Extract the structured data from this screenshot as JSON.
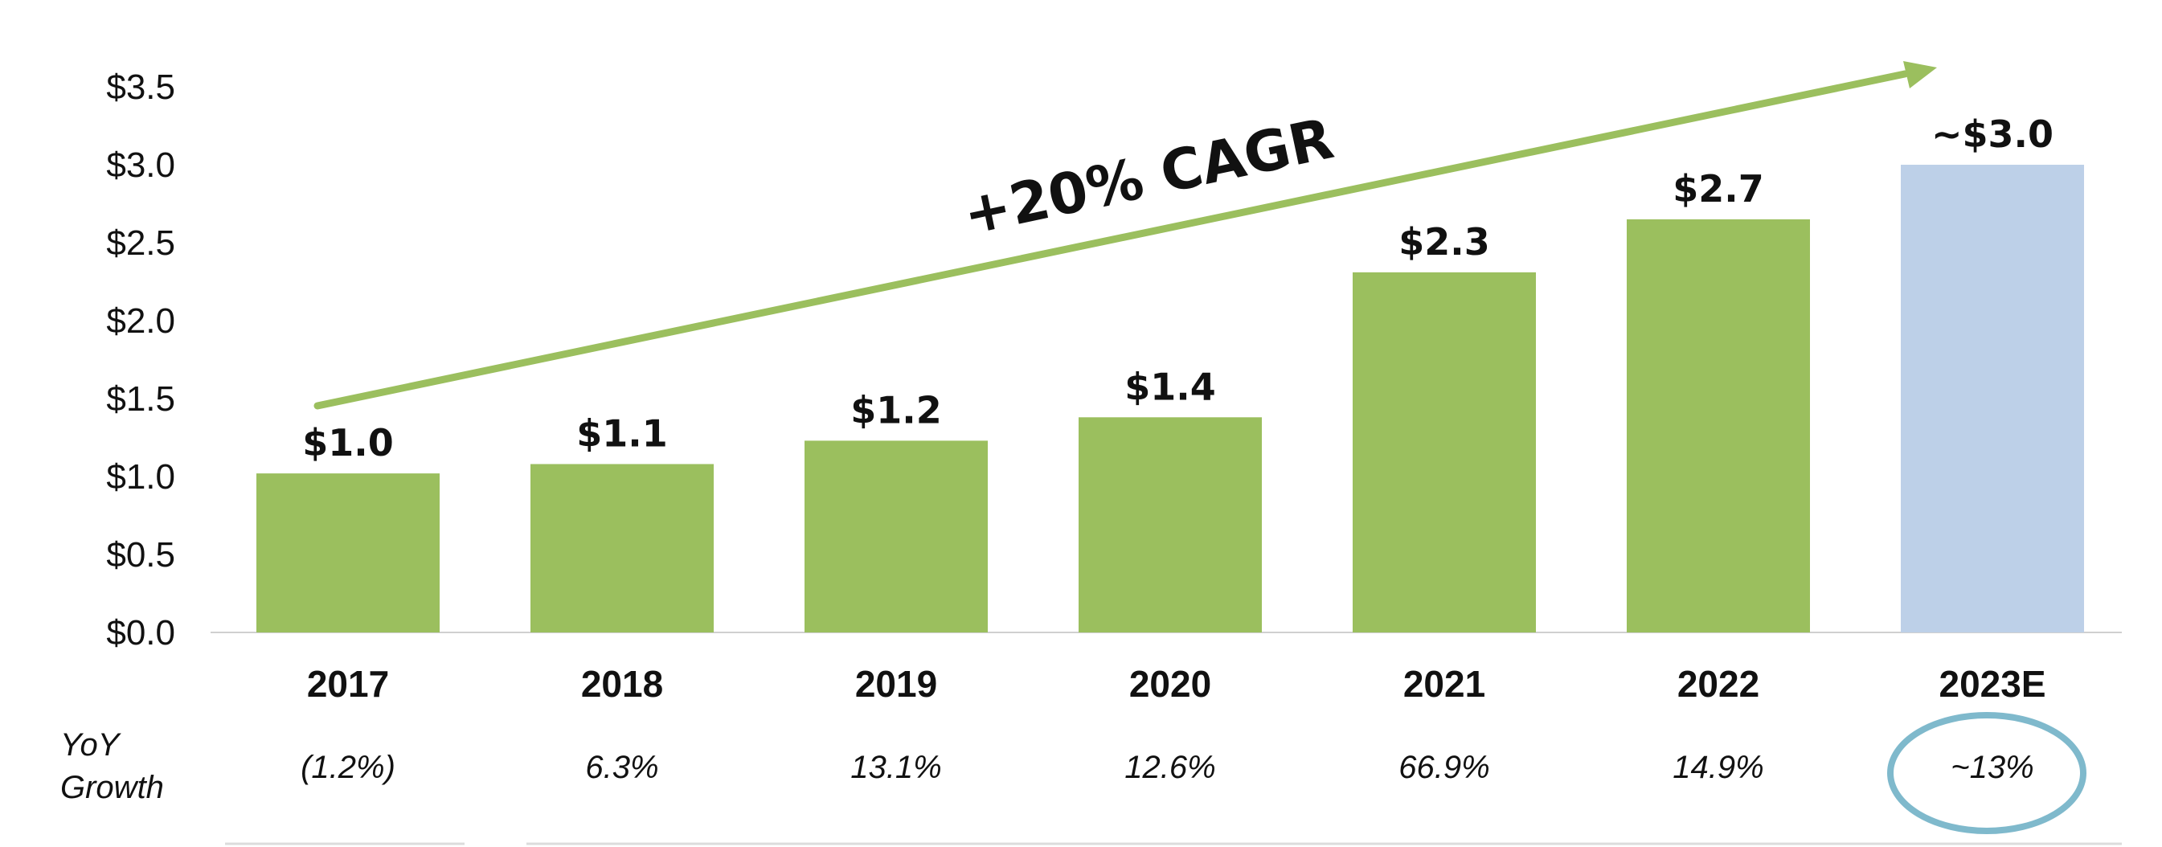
{
  "chart_data": {
    "type": "bar",
    "categories": [
      "2017",
      "2018",
      "2019",
      "2020",
      "2021",
      "2022",
      "2023E"
    ],
    "values": [
      1.02,
      1.08,
      1.23,
      1.38,
      2.31,
      2.65,
      3.0
    ],
    "data_labels": [
      "$1.0",
      "$1.1",
      "$1.2",
      "$1.4",
      "$2.3",
      "$2.7",
      "~$3.0"
    ],
    "yticks": [
      "$0.0",
      "$0.5",
      "$1.0",
      "$1.5",
      "$2.0",
      "$2.5",
      "$3.0",
      "$3.5"
    ],
    "ylim": [
      0,
      3.5
    ],
    "grid": false,
    "legend": "none",
    "colors": {
      "actual": "#9bbf5e",
      "estimate": "#bdd0e8",
      "arrow": "#9bbf5e",
      "circle": "#7fb9cc"
    },
    "annotation": "+20% CAGR",
    "growth_row": {
      "label_line1": "YoY",
      "label_line2": "Growth",
      "values": [
        "(1.2%)",
        "6.3%",
        "13.1%",
        "12.6%",
        "66.9%",
        "14.9%",
        "~13%"
      ]
    },
    "highlighted_category": "2023E"
  }
}
